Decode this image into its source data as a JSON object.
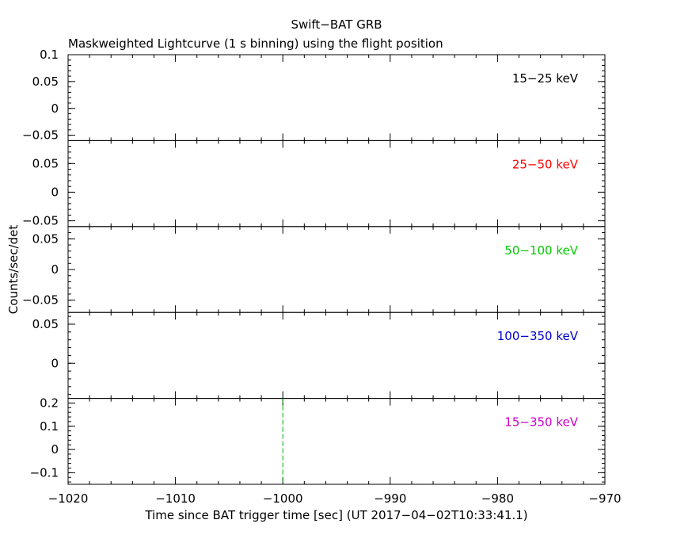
{
  "chart_data": {
    "type": "line",
    "title": "Swift−BAT GRB",
    "subtitle": "Maskweighted Lightcurve (1 s binning) using the flight position",
    "xlabel": "Time since BAT trigger time [sec] (UT 2017−04−02T10:33:41.1)",
    "ylabel": "Counts/sec/det",
    "xlim": [
      -1020,
      -970
    ],
    "xticks": [
      -1020,
      -1010,
      -1000,
      -990,
      -980,
      -970
    ],
    "xtick_labels": [
      "−1020",
      "−1010",
      "−1000",
      "−990",
      "−980",
      "−970"
    ],
    "grid": false,
    "panels": [
      {
        "band": "15−25 keV",
        "color": "#000000",
        "ylim": [
          -0.06,
          0.1
        ],
        "yticks": [
          -0.05,
          0,
          0.05,
          0.1
        ],
        "ytick_labels": [
          "−0.05",
          "0",
          "0.05",
          "0.1"
        ],
        "series": []
      },
      {
        "band": "25−50 keV",
        "color": "#ff0000",
        "ylim": [
          -0.06,
          0.09
        ],
        "yticks": [
          -0.05,
          0,
          0.05
        ],
        "ytick_labels": [
          "−0.05",
          "0",
          "0.05"
        ],
        "series": []
      },
      {
        "band": "50−100 keV",
        "color": "#00cc00",
        "ylim": [
          -0.07,
          0.07
        ],
        "yticks": [
          -0.05,
          0,
          0.05
        ],
        "ytick_labels": [
          "−0.05",
          "0",
          "0.05"
        ],
        "series": []
      },
      {
        "band": "100−350 keV",
        "color": "#0000cc",
        "ylim": [
          -0.045,
          0.065
        ],
        "yticks": [
          0,
          0.05
        ],
        "ytick_labels": [
          "0",
          "0.05"
        ],
        "series": []
      },
      {
        "band": "15−350 keV",
        "color": "#cc00cc",
        "ylim": [
          -0.15,
          0.22
        ],
        "yticks": [
          -0.1,
          0,
          0.1,
          0.2
        ],
        "ytick_labels": [
          "−0.1",
          "0",
          "0.1",
          "0.2"
        ],
        "series": [],
        "marker_x": -1000,
        "marker_color": "#00aa00"
      }
    ]
  }
}
